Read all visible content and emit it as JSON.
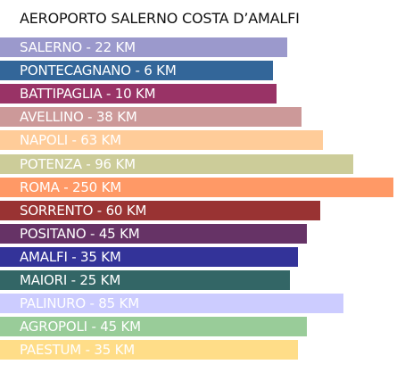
{
  "chart_data": {
    "type": "bar",
    "orientation": "horizontal",
    "title": "AEROPORTO SALERNO COSTA D’AMALFI",
    "unit": "KM",
    "categories": [
      "SALERNO",
      "PONTECAGNANO",
      "BATTIPAGLIA",
      "AVELLINO",
      "NAPOLI",
      "POTENZA",
      "ROMA",
      "SORRENTO",
      "POSITANO",
      "AMALFI",
      "MAIORI",
      "PALINURO",
      "AGROPOLI",
      "PAESTUM"
    ],
    "values": [
      22,
      6,
      10,
      38,
      63,
      96,
      250,
      60,
      45,
      35,
      25,
      85,
      45,
      35
    ],
    "labels": [
      "SALERNO - 22 KM",
      "PONTECAGNANO - 6 KM",
      "BATTIPAGLIA - 10 KM",
      "AVELLINO - 38 KM",
      "NAPOLI - 63 KM",
      "POTENZA - 96 KM",
      "ROMA - 250 KM",
      "SORRENTO - 60 KM",
      "POSITANO - 45 KM",
      "AMALFI - 35 KM",
      "MAIORI - 25 KM",
      "PALINURO - 85 KM",
      "AGROPOLI - 45 KM",
      "PAESTUM - 35 KM"
    ],
    "colors": [
      "#9b99cc",
      "#336699",
      "#993366",
      "#cc9999",
      "#ffcc99",
      "#cccc99",
      "#ff9966",
      "#993333",
      "#663366",
      "#333399",
      "#336666",
      "#ccccff",
      "#99cc99",
      "#ffdd88"
    ],
    "grid": false,
    "legend": "none"
  }
}
